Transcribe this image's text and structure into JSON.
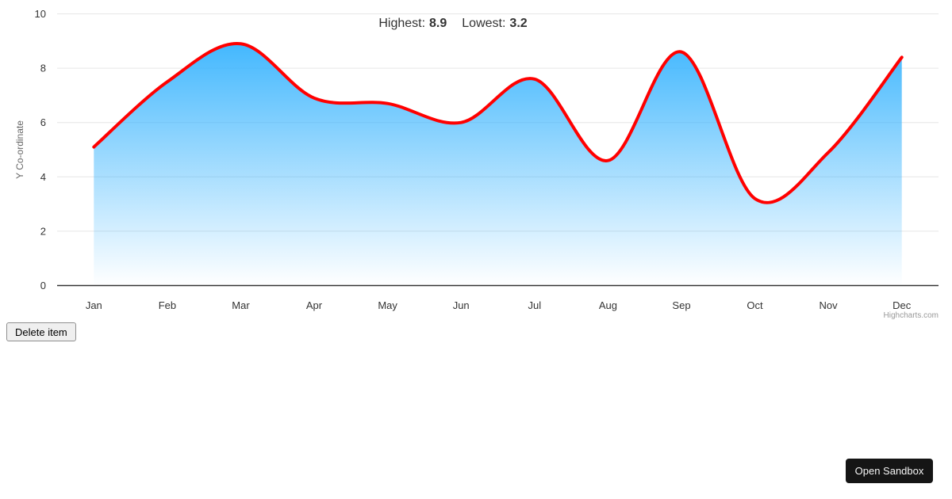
{
  "chart_data": {
    "type": "area",
    "categories": [
      "Jan",
      "Feb",
      "Mar",
      "Apr",
      "May",
      "Jun",
      "Jul",
      "Aug",
      "Sep",
      "Oct",
      "Nov",
      "Dec"
    ],
    "values": [
      5.1,
      7.5,
      8.9,
      6.9,
      6.7,
      6.0,
      7.6,
      4.6,
      8.6,
      3.2,
      4.9,
      8.4
    ],
    "title_high_label": "Highest:",
    "title_high_value": "8.9",
    "title_low_label": "Lowest:",
    "title_low_value": "3.2",
    "xlabel": "",
    "ylabel": "Y Co-ordinate",
    "ylim": [
      0,
      10
    ],
    "yticks": [
      0,
      2,
      4,
      6,
      8,
      10
    ],
    "grid": true,
    "legend": false,
    "line_color": "#ff0000",
    "area_gradient_top": "#2caffe",
    "grid_color": "#e6e6e6",
    "axis_line_color": "#333333",
    "label_color": "#333333",
    "credit": "Highcharts.com"
  },
  "buttons": {
    "delete_item": "Delete item",
    "open_sandbox": "Open Sandbox"
  }
}
